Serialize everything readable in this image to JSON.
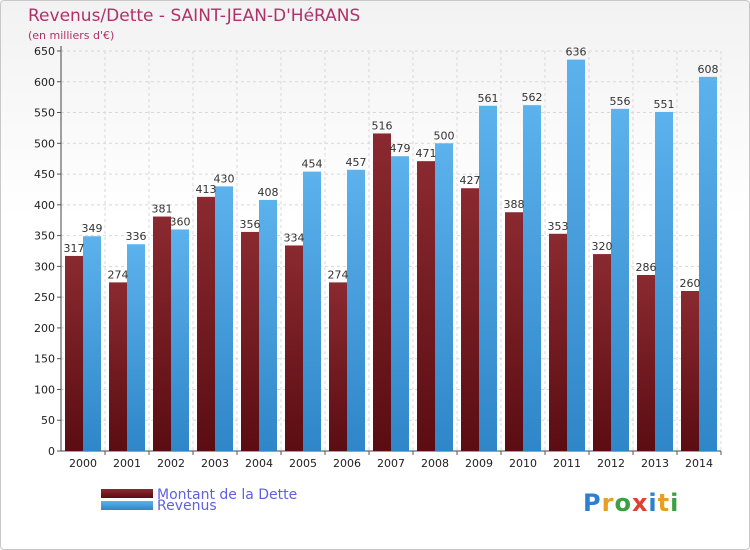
{
  "header": {
    "title": "Revenus/Dette - SAINT-JEAN-D'HéRANS",
    "subtitle": "(en milliers d'€)"
  },
  "legend": {
    "items": [
      {
        "label": "Montant de la Dette",
        "color": "#6b1a1f"
      },
      {
        "label": "Revenus",
        "color": "#4da3e0"
      }
    ]
  },
  "logo": {
    "letters": [
      {
        "char": "P",
        "color": "#2f7fcf"
      },
      {
        "char": "r",
        "color": "#e8a020"
      },
      {
        "char": "o",
        "color": "#3aa040"
      },
      {
        "char": "x",
        "color": "#e04030"
      },
      {
        "char": "i",
        "color": "#2f7fcf"
      },
      {
        "char": "t",
        "color": "#e8a020"
      },
      {
        "char": "i",
        "color": "#3aa040"
      }
    ]
  },
  "chart_data": {
    "type": "bar",
    "categories": [
      "2000",
      "2001",
      "2002",
      "2003",
      "2004",
      "2005",
      "2006",
      "2007",
      "2008",
      "2009",
      "2010",
      "2011",
      "2012",
      "2013",
      "2014"
    ],
    "series": [
      {
        "name": "Montant de la Dette",
        "color": "#7a1f25",
        "values": [
          317,
          274,
          381,
          413,
          356,
          334,
          274,
          516,
          471,
          427,
          388,
          353,
          320,
          286,
          260
        ]
      },
      {
        "name": "Revenus",
        "color": "#4fa6e2",
        "values": [
          349,
          336,
          360,
          430,
          408,
          454,
          457,
          479,
          500,
          561,
          562,
          636,
          556,
          551,
          608
        ]
      }
    ],
    "ylim": [
      0,
      650
    ],
    "yticks": [
      0,
      50,
      100,
      150,
      200,
      250,
      300,
      350,
      400,
      450,
      500,
      550,
      600,
      650
    ],
    "grid": true,
    "legend_position": "bottom-left"
  }
}
